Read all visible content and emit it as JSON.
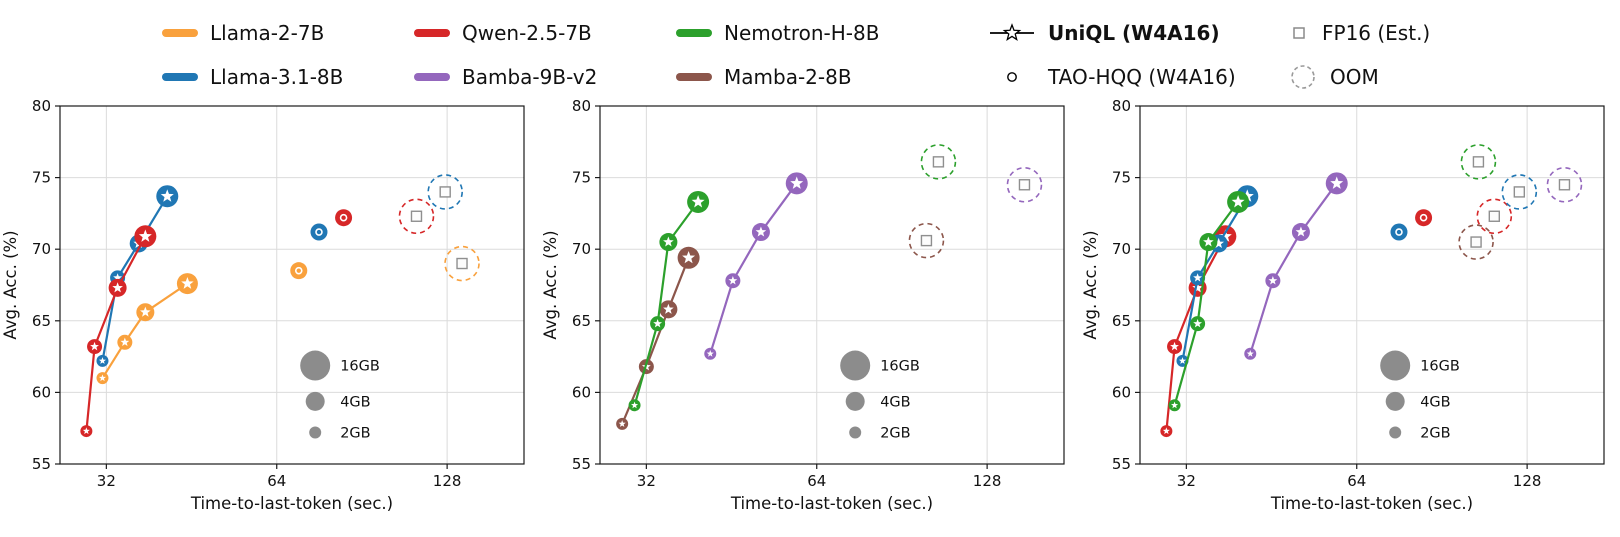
{
  "legend": {
    "rows": [
      [
        {
          "label": "Llama-2-7B",
          "marker": "line",
          "color": "#F9A13D"
        },
        {
          "label": "Qwen-2.5-7B",
          "marker": "line",
          "color": "#D62728"
        },
        {
          "label": "Nemotron-H-8B",
          "marker": "line",
          "color": "#2CA02C"
        },
        {
          "label": "UniQL (W4A16)",
          "marker": "uniql-star-line",
          "color": "#000000",
          "bold": true
        },
        {
          "label": "FP16 (Est.)",
          "marker": "open-square",
          "color": "#8A8A8A"
        }
      ],
      [
        {
          "label": "Llama-3.1-8B",
          "marker": "line",
          "color": "#2077B4"
        },
        {
          "label": "Bamba-9B-v2",
          "marker": "line",
          "color": "#9467BD"
        },
        {
          "label": "Mamba-2-8B",
          "marker": "line",
          "color": "#8C564B"
        },
        {
          "label": "TAO-HQQ (W4A16)",
          "marker": "open-circle",
          "color": "#000000"
        },
        {
          "label": "OOM",
          "marker": "dashed-circle",
          "color": "#9A9A9A"
        }
      ]
    ]
  },
  "marker_semantics": {
    "uniql": "filled circle with white star, connected by line",
    "tao_hqq": "filled circle with small white ring",
    "fp16_est": "small open gray square",
    "oom": "dashed circle in series color around FP16 estimate",
    "bubble_size": "marker area encodes memory budget"
  },
  "chart_data": [
    {
      "type": "scatter",
      "title": "",
      "xlabel": "Time-to-last-token (sec.)",
      "ylabel": "Avg. Acc. (%)",
      "xscale": "log2",
      "xlim": [
        26.5,
        175
      ],
      "ylim": [
        55,
        80
      ],
      "xticks": [
        32,
        64,
        128
      ],
      "yticks": [
        55,
        60,
        65,
        70,
        75,
        80
      ],
      "grid": true,
      "size_legend": {
        "labels": [
          "16GB",
          "4GB",
          "2GB"
        ],
        "radii": [
          15,
          9.5,
          6
        ]
      },
      "series": [
        {
          "name": "Llama-2-7B",
          "color": "#F9A13D",
          "uniql_points": [
            {
              "x": 31.5,
              "y": 61.0,
              "r": 6
            },
            {
              "x": 34.5,
              "y": 63.5,
              "r": 7.5
            },
            {
              "x": 37.5,
              "y": 65.6,
              "r": 9
            },
            {
              "x": 44.5,
              "y": 67.6,
              "r": 10.5
            }
          ],
          "tao_hqq_point": {
            "x": 70,
            "y": 68.5,
            "r": 8.5
          },
          "fp16_est_point": {
            "x": 136,
            "y": 69.0,
            "oom": true
          }
        },
        {
          "name": "Llama-3.1-8B",
          "color": "#2077B4",
          "uniql_points": [
            {
              "x": 31.5,
              "y": 62.2,
              "r": 6
            },
            {
              "x": 33.5,
              "y": 68.0,
              "r": 7.5
            },
            {
              "x": 36.5,
              "y": 70.4,
              "r": 9
            },
            {
              "x": 41,
              "y": 73.7,
              "r": 11
            }
          ],
          "tao_hqq_point": {
            "x": 76,
            "y": 71.2,
            "r": 8.5
          },
          "fp16_est_point": {
            "x": 127,
            "y": 74.0,
            "oom": true
          }
        },
        {
          "name": "Qwen-2.5-7B",
          "color": "#D62728",
          "uniql_points": [
            {
              "x": 29.5,
              "y": 57.3,
              "r": 6
            },
            {
              "x": 30.5,
              "y": 63.2,
              "r": 7.5
            },
            {
              "x": 33.5,
              "y": 67.3,
              "r": 9
            },
            {
              "x": 37.5,
              "y": 70.9,
              "r": 11
            }
          ],
          "tao_hqq_point": {
            "x": 84,
            "y": 72.2,
            "r": 8.5
          },
          "fp16_est_point": {
            "x": 113,
            "y": 72.3,
            "oom": true
          }
        }
      ]
    },
    {
      "type": "scatter",
      "title": "",
      "xlabel": "Time-to-last-token (sec.)",
      "ylabel": "Avg. Acc. (%)",
      "xscale": "log2",
      "xlim": [
        26.5,
        175
      ],
      "ylim": [
        55,
        80
      ],
      "xticks": [
        32,
        64,
        128
      ],
      "yticks": [
        55,
        60,
        65,
        70,
        75,
        80
      ],
      "grid": true,
      "size_legend": {
        "labels": [
          "16GB",
          "4GB",
          "2GB"
        ],
        "radii": [
          15,
          9.5,
          6
        ]
      },
      "series": [
        {
          "name": "Mamba-2-8B",
          "color": "#8C564B",
          "uniql_points": [
            {
              "x": 29,
              "y": 57.8,
              "r": 6
            },
            {
              "x": 32,
              "y": 61.8,
              "r": 7.5
            },
            {
              "x": 35,
              "y": 65.8,
              "r": 9
            },
            {
              "x": 38,
              "y": 69.4,
              "r": 11
            }
          ],
          "fp16_est_point": {
            "x": 100,
            "y": 70.6,
            "oom": true
          }
        },
        {
          "name": "Nemotron-H-8B",
          "color": "#2CA02C",
          "uniql_points": [
            {
              "x": 30.5,
              "y": 59.1,
              "r": 6
            },
            {
              "x": 33.5,
              "y": 64.8,
              "r": 7.5
            },
            {
              "x": 35,
              "y": 70.5,
              "r": 9
            },
            {
              "x": 39.5,
              "y": 73.3,
              "r": 11
            }
          ],
          "fp16_est_point": {
            "x": 105,
            "y": 76.1,
            "oom": true
          }
        },
        {
          "name": "Bamba-9B-v2",
          "color": "#9467BD",
          "uniql_points": [
            {
              "x": 41.5,
              "y": 62.7,
              "r": 6
            },
            {
              "x": 45.5,
              "y": 67.8,
              "r": 7.5
            },
            {
              "x": 51,
              "y": 71.2,
              "r": 9
            },
            {
              "x": 59,
              "y": 74.6,
              "r": 11
            }
          ],
          "fp16_est_point": {
            "x": 149,
            "y": 74.5,
            "oom": true
          }
        }
      ]
    },
    {
      "type": "scatter",
      "title": "",
      "xlabel": "Time-to-last-token (sec.)",
      "ylabel": "Avg. Acc. (%)",
      "xscale": "log2",
      "xlim": [
        26.5,
        175
      ],
      "ylim": [
        55,
        80
      ],
      "xticks": [
        32,
        64,
        128
      ],
      "yticks": [
        55,
        60,
        65,
        70,
        75,
        80
      ],
      "grid": true,
      "size_legend": {
        "labels": [
          "16GB",
          "4GB",
          "2GB"
        ],
        "radii": [
          15,
          9.5,
          6
        ]
      },
      "series": [
        {
          "name": "Qwen-2.5-7B",
          "color": "#D62728",
          "uniql_points": [
            {
              "x": 29.5,
              "y": 57.3,
              "r": 6
            },
            {
              "x": 30.5,
              "y": 63.2,
              "r": 7.5
            },
            {
              "x": 33.5,
              "y": 67.3,
              "r": 9
            },
            {
              "x": 37.5,
              "y": 70.9,
              "r": 11
            }
          ],
          "tao_hqq_point": {
            "x": 84,
            "y": 72.2,
            "r": 8.5
          },
          "fp16_est_point": {
            "x": 112,
            "y": 72.3,
            "oom": true
          }
        },
        {
          "name": "Llama-3.1-8B",
          "color": "#2077B4",
          "uniql_points": [
            {
              "x": 31.5,
              "y": 62.2,
              "r": 6
            },
            {
              "x": 33.5,
              "y": 68.0,
              "r": 7.5
            },
            {
              "x": 36.5,
              "y": 70.4,
              "r": 9
            },
            {
              "x": 41,
              "y": 73.7,
              "r": 11
            }
          ],
          "tao_hqq_point": {
            "x": 76,
            "y": 71.2,
            "r": 8.5
          },
          "fp16_est_point": {
            "x": 124,
            "y": 74.0,
            "oom": true
          }
        },
        {
          "name": "Nemotron-H-8B",
          "color": "#2CA02C",
          "uniql_points": [
            {
              "x": 30.5,
              "y": 59.1,
              "r": 6
            },
            {
              "x": 33.5,
              "y": 64.8,
              "r": 7.5
            },
            {
              "x": 35,
              "y": 70.5,
              "r": 9
            },
            {
              "x": 39.5,
              "y": 73.3,
              "r": 11
            }
          ],
          "fp16_est_point": {
            "x": 105,
            "y": 76.1,
            "oom": true
          }
        },
        {
          "name": "Bamba-9B-v2",
          "color": "#9467BD",
          "uniql_points": [
            {
              "x": 41.5,
              "y": 62.7,
              "r": 6
            },
            {
              "x": 45.5,
              "y": 67.8,
              "r": 7.5
            },
            {
              "x": 51,
              "y": 71.2,
              "r": 9
            },
            {
              "x": 59,
              "y": 74.6,
              "r": 11
            }
          ],
          "fp16_est_point": {
            "x": 149,
            "y": 74.5,
            "oom": true
          }
        },
        {
          "name": "Mamba-2-8B",
          "color": "#8C564B",
          "uniql_points": [],
          "fp16_est_point": {
            "x": 104,
            "y": 70.5,
            "oom": true
          }
        }
      ]
    }
  ]
}
